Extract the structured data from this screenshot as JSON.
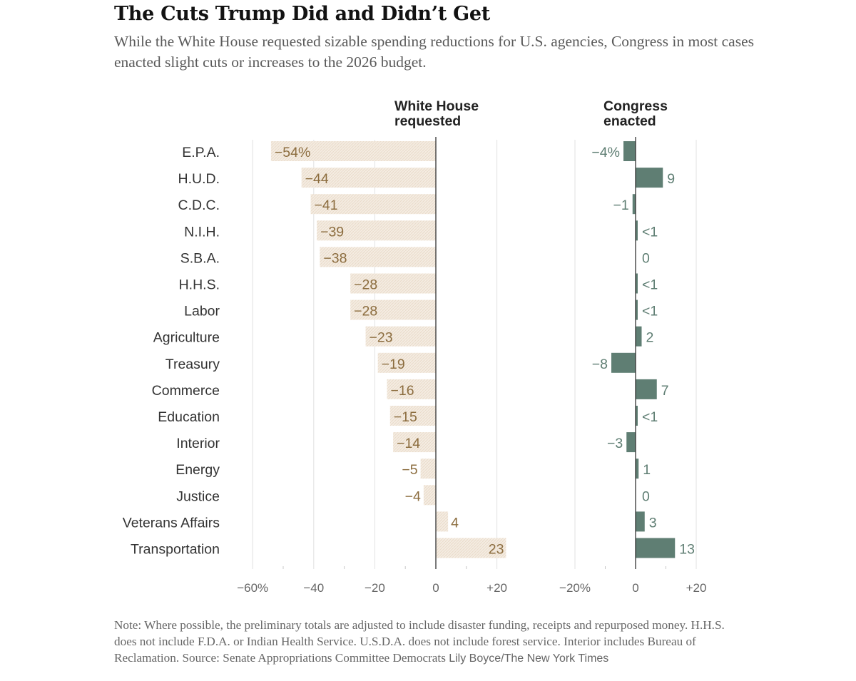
{
  "title": "The Cuts Trump Did and Didn’t Get",
  "subtitle": "While the White House requested sizable spending reductions for U.S. agencies, Congress in most cases enacted slight cuts or increases to the 2026 budget.",
  "note": "Note: Where possible, the preliminary totals are adjusted to include disaster funding, receipts and repurposed money. H.H.S. does not include F.D.A. or Indian Health Service. U.S.D.A. does not include forest service. Interior includes Bureau of Reclamation.  Source: Senate Appropriations Committee Democrats",
  "credit": "Lily Boyce/The New York Times",
  "colors": {
    "white_house_bar": "#f2e9de",
    "white_house_text": "#8c6d3f",
    "congress_bar": "#5f7e73",
    "congress_text": "#5f7e73",
    "axis": "#333333",
    "grid": "#e2e2e2",
    "tick_text": "#666666",
    "category_text": "#333333"
  },
  "chart_data": {
    "type": "bar",
    "orientation": "horizontal",
    "categories": [
      "E.P.A.",
      "H.U.D.",
      "C.D.C.",
      "N.I.H.",
      "S.B.A.",
      "H.H.S.",
      "Labor",
      "Agriculture",
      "Treasury",
      "Commerce",
      "Education",
      "Interior",
      "Energy",
      "Justice",
      "Veterans Affairs",
      "Transportation"
    ],
    "panels": [
      {
        "name": "White House requested",
        "title_lines": [
          "White House",
          "requested"
        ],
        "values": [
          -54,
          -44,
          -41,
          -39,
          -38,
          -28,
          -28,
          -23,
          -19,
          -16,
          -15,
          -14,
          -5,
          -4,
          4,
          23
        ],
        "value_labels": [
          "−54%",
          "−44",
          "−41",
          "−39",
          "−38",
          "−28",
          "−28",
          "−23",
          "−19",
          "−16",
          "−15",
          "−14",
          "−5",
          "−4",
          "4",
          "23"
        ],
        "xlim": [
          -60,
          30
        ],
        "ticks": [
          -60,
          -40,
          -20,
          0,
          20
        ],
        "tick_labels": [
          "−60%",
          "−40",
          "−20",
          "0",
          "+20"
        ]
      },
      {
        "name": "Congress enacted",
        "title_lines": [
          "Congress",
          "enacted"
        ],
        "values": [
          -4,
          9,
          -1,
          0.5,
          0,
          0.5,
          0.5,
          2,
          -8,
          7,
          0.5,
          -3,
          1,
          0,
          3,
          13
        ],
        "value_labels": [
          "−4%",
          "9",
          "−1",
          "<1",
          "0",
          "<1",
          "<1",
          "2",
          "−8",
          "7",
          "<1",
          "−3",
          "1",
          "0",
          "3",
          "13"
        ],
        "xlim": [
          -20,
          20
        ],
        "ticks": [
          -20,
          0,
          20
        ],
        "tick_labels": [
          "−20%",
          "0",
          "+20"
        ]
      }
    ],
    "xlabel": "",
    "ylabel": "",
    "units": "percent change"
  }
}
